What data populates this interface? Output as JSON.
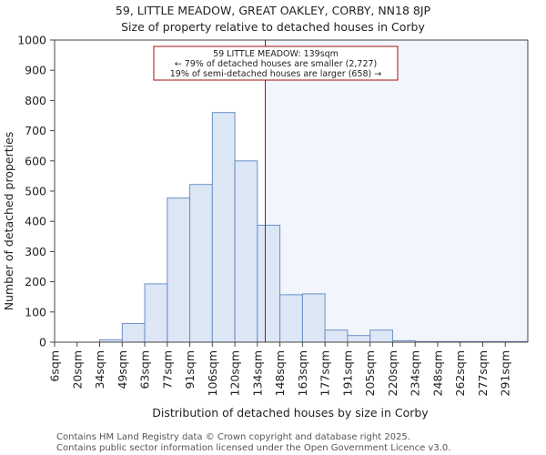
{
  "chart_data": {
    "type": "bar",
    "title_line1": "59, LITTLE MEADOW, GREAT OAKLEY, CORBY, NN18 8JP",
    "title_line2": "Size of property relative to detached houses in Corby",
    "xlabel": "Distribution of detached houses by size in Corby",
    "ylabel": "Number of detached properties",
    "ylim": [
      0,
      1000
    ],
    "yticks": [
      0,
      100,
      200,
      300,
      400,
      500,
      600,
      700,
      800,
      900,
      1000
    ],
    "categories": [
      "6sqm",
      "20sqm",
      "34sqm",
      "49sqm",
      "63sqm",
      "77sqm",
      "91sqm",
      "106sqm",
      "120sqm",
      "134sqm",
      "148sqm",
      "163sqm",
      "177sqm",
      "191sqm",
      "205sqm",
      "220sqm",
      "234sqm",
      "248sqm",
      "262sqm",
      "277sqm",
      "291sqm"
    ],
    "values": [
      0,
      0,
      8,
      62,
      193,
      477,
      522,
      760,
      600,
      387,
      157,
      160,
      40,
      22,
      40,
      5,
      2,
      2,
      2,
      2,
      2
    ],
    "marker_bin_position": 9.35,
    "annotation_lines": [
      "59 LITTLE MEADOW: 139sqm",
      "← 79% of detached houses are smaller (2,727)",
      "19% of semi-detached houses are larger (658) →"
    ],
    "colors": {
      "bar_fill": "#dce6f5",
      "bar_stroke": "#6a8fc7",
      "highlight_fill": "#f2f5fc",
      "marker": "#a01010",
      "axis": "#444444",
      "text": "#222222"
    }
  },
  "footer": {
    "line1": "Contains HM Land Registry data © Crown copyright and database right 2025.",
    "line2": "Contains public sector information licensed under the Open Government Licence v3.0."
  }
}
